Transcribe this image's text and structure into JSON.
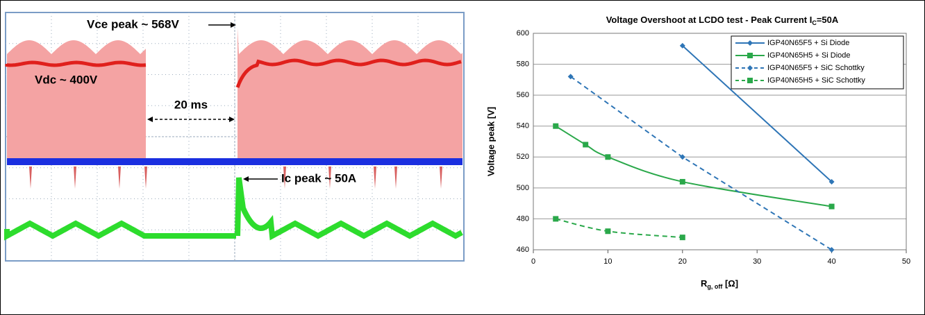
{
  "scope": {
    "annotations": {
      "vce": "Vce peak ~ 568V",
      "vdc": "Vdc ~ 400V",
      "time": "20 ms",
      "ic": "Ic peak ~ 50A"
    }
  },
  "chart_data": {
    "type": "line",
    "title": [
      "Voltage Overshoot at LCDO test  - Peak Current I",
      "C",
      "=50A"
    ],
    "x_label": [
      "R",
      "g, off",
      " [Ω]"
    ],
    "y_label": "Voltage peak [V]",
    "xlim": [
      0,
      50
    ],
    "xticks": [
      0,
      10,
      20,
      30,
      40,
      50
    ],
    "ylim": [
      460,
      600
    ],
    "yticks": [
      460,
      480,
      500,
      520,
      540,
      560,
      580,
      600
    ],
    "grid": true,
    "legend": "top-right",
    "series": [
      {
        "name": "IGP40N65F5 + Si Diode",
        "color": "#2e75b6",
        "marker": "diamond",
        "dashed": false,
        "smooth": false,
        "x": [
          20,
          40
        ],
        "values": [
          592,
          504
        ]
      },
      {
        "name": "IGP40N65H5 + Si Diode",
        "color": "#2aa84a",
        "marker": "square",
        "dashed": false,
        "smooth": true,
        "x": [
          3,
          7,
          10,
          20,
          40
        ],
        "values": [
          540,
          528,
          520,
          504,
          488
        ]
      },
      {
        "name": "IGP40N65F5 + SiC Schottky",
        "color": "#2e75b6",
        "marker": "diamond",
        "dashed": true,
        "smooth": false,
        "x": [
          5,
          20,
          40
        ],
        "values": [
          572,
          520,
          460
        ]
      },
      {
        "name": "IGP40N65H5 + SiC Schottky",
        "color": "#2aa84a",
        "marker": "square",
        "dashed": true,
        "smooth": true,
        "x": [
          3,
          10,
          20
        ],
        "values": [
          480,
          472,
          468
        ]
      }
    ]
  }
}
